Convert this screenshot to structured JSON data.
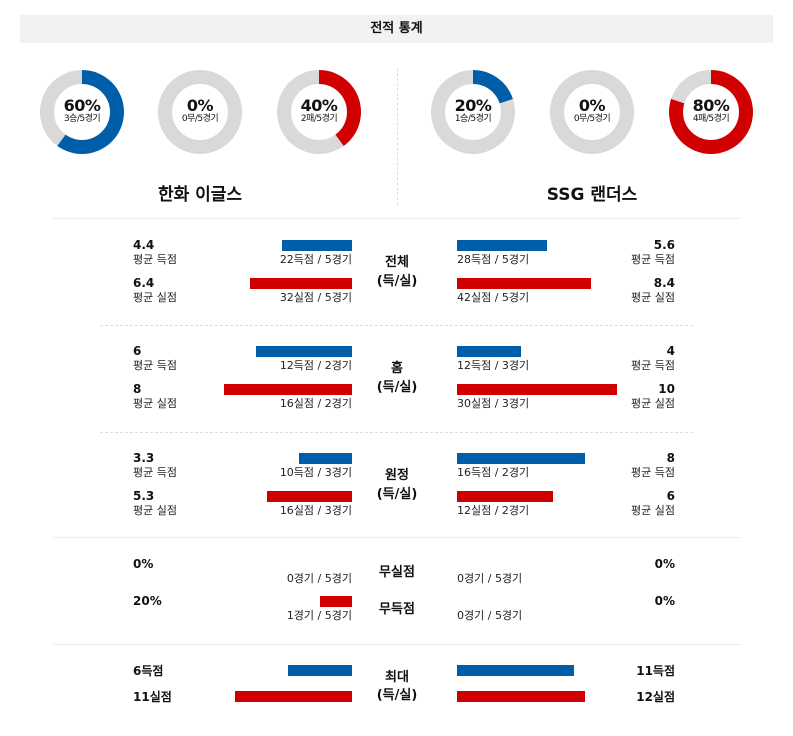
{
  "title": "전적 통계",
  "colors": {
    "blue": "#005ea8",
    "red": "#d10000",
    "grey": "#d9d9d9"
  },
  "teams": [
    {
      "name": "한화 이글스",
      "donuts": [
        {
          "pct": "60%",
          "sub": "3승/5경기",
          "value": 60,
          "color": "blue"
        },
        {
          "pct": "0%",
          "sub": "0무/5경기",
          "value": 0,
          "color": "grey"
        },
        {
          "pct": "40%",
          "sub": "2패/5경기",
          "value": 40,
          "color": "red"
        }
      ]
    },
    {
      "name": "SSG 랜더스",
      "donuts": [
        {
          "pct": "20%",
          "sub": "1승/5경기",
          "value": 20,
          "color": "blue"
        },
        {
          "pct": "0%",
          "sub": "0무/5경기",
          "value": 0,
          "color": "grey"
        },
        {
          "pct": "80%",
          "sub": "4패/5경기",
          "value": 80,
          "color": "red"
        }
      ]
    }
  ],
  "sections": [
    {
      "label": "전체",
      "label2": "(득/실)",
      "rows": [
        {
          "left": {
            "val": "4.4",
            "lbl": "평균 득점",
            "sub": "22득점 / 5경기",
            "bar": 4.4
          },
          "right": {
            "val": "5.6",
            "lbl": "평균 득점",
            "sub": "28득점 / 5경기",
            "bar": 5.6
          },
          "color": "blue"
        },
        {
          "left": {
            "val": "6.4",
            "lbl": "평균 실점",
            "sub": "32실점 / 5경기",
            "bar": 6.4
          },
          "right": {
            "val": "8.4",
            "lbl": "평균 실점",
            "sub": "42실점 / 5경기",
            "bar": 8.4
          },
          "color": "red"
        }
      ]
    },
    {
      "label": "홈",
      "label2": "(득/실)",
      "rows": [
        {
          "left": {
            "val": "6",
            "lbl": "평균 득점",
            "sub": "12득점 / 2경기",
            "bar": 6
          },
          "right": {
            "val": "4",
            "lbl": "평균 득점",
            "sub": "12득점 / 3경기",
            "bar": 4
          },
          "color": "blue"
        },
        {
          "left": {
            "val": "8",
            "lbl": "평균 실점",
            "sub": "16실점 / 2경기",
            "bar": 8
          },
          "right": {
            "val": "10",
            "lbl": "평균 실점",
            "sub": "30실점 / 3경기",
            "bar": 10
          },
          "color": "red"
        }
      ]
    },
    {
      "label": "원정",
      "label2": "(득/실)",
      "rows": [
        {
          "left": {
            "val": "3.3",
            "lbl": "평균 득점",
            "sub": "10득점 / 3경기",
            "bar": 3.3
          },
          "right": {
            "val": "8",
            "lbl": "평균 득점",
            "sub": "16득점 / 2경기",
            "bar": 8
          },
          "color": "blue"
        },
        {
          "left": {
            "val": "5.3",
            "lbl": "평균 실점",
            "sub": "16실점 / 3경기",
            "bar": 5.3
          },
          "right": {
            "val": "6",
            "lbl": "평균 실점",
            "sub": "12실점 / 2경기",
            "bar": 6
          },
          "color": "red"
        }
      ]
    }
  ],
  "zero": [
    {
      "label": "무실점",
      "left": {
        "val": "0%",
        "sub": "0경기 / 5경기",
        "bar": 0
      },
      "right": {
        "val": "0%",
        "sub": "0경기 / 5경기",
        "bar": 0
      },
      "color": "blue"
    },
    {
      "label": "무득점",
      "left": {
        "val": "20%",
        "sub": "1경기 / 5경기",
        "bar": 20
      },
      "right": {
        "val": "0%",
        "sub": "0경기 / 5경기",
        "bar": 0
      },
      "color": "red"
    }
  ],
  "max": {
    "label": "최대",
    "label2": "(득/실)",
    "rows": [
      {
        "left": {
          "val": "6득점",
          "bar": 6
        },
        "right": {
          "val": "11득점",
          "bar": 11
        },
        "color": "blue"
      },
      {
        "left": {
          "val": "11실점",
          "bar": 11
        },
        "right": {
          "val": "12실점",
          "bar": 12
        },
        "color": "red"
      }
    ]
  }
}
